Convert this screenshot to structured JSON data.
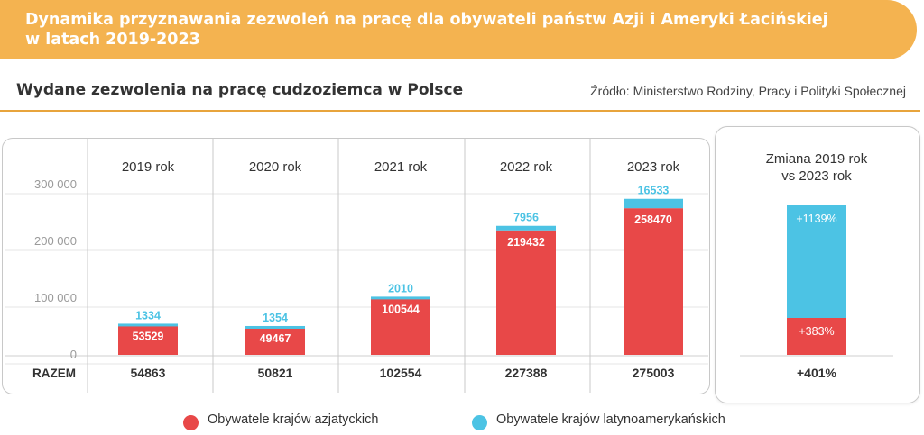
{
  "header": {
    "title_line1": "Dynamika przyznawania zezwoleń na pracę dla obywateli państw Azji i Ameryki Łacińskiej",
    "title_line2": "w latach 2019-2023",
    "subtitle": "Wydane zezwolenia na pracę cudzoziemca w Polsce",
    "source": "Źródło: Ministerstwo Rodziny, Pracy i Polityki Społecznej"
  },
  "colors": {
    "asia": "#e84848",
    "latam": "#4cc3e4",
    "banner": "#f4b350"
  },
  "chart_data": {
    "type": "bar",
    "stacked": true,
    "categories": [
      "2019 rok",
      "2020 rok",
      "2021 rok",
      "2022 rok",
      "2023 rok"
    ],
    "series": [
      {
        "name": "Obywatele krajów azjatyckich",
        "values": [
          53529,
          49467,
          100544,
          219432,
          258470
        ]
      },
      {
        "name": "Obywatele krajów latynoamerykańskich",
        "values": [
          1334,
          1354,
          2010,
          7956,
          16533
        ]
      }
    ],
    "yticks": [
      "0",
      "100 000",
      "200 000",
      "300 000"
    ],
    "ylim": [
      0,
      300000
    ],
    "totals_label": "RAZEM",
    "totals": [
      "54863",
      "50821",
      "102554",
      "227388",
      "275003"
    ],
    "legend_position": "bottom"
  },
  "change_panel": {
    "title_line1": "Zmiana 2019 rok",
    "title_line2": "vs 2023 rok",
    "asia_change": "+383%",
    "latam_change": "+1139%",
    "total_change": "+401%"
  },
  "legend": {
    "asia": "Obywatele krajów azjatyckich",
    "latam": "Obywatele krajów latynoamerykańskich"
  }
}
